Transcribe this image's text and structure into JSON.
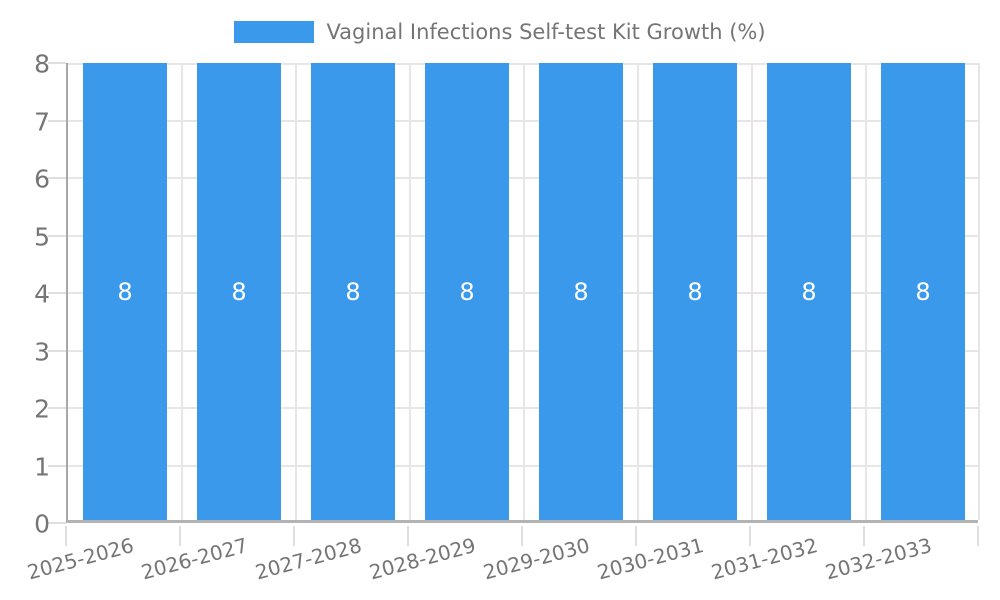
{
  "chart_data": {
    "type": "bar",
    "title": "Vaginal Infections Self-test Kit Growth (%)",
    "categories": [
      "2025-2026",
      "2026-2027",
      "2027-2028",
      "2028-2029",
      "2029-2030",
      "2030-2031",
      "2031-2032",
      "2032-2033"
    ],
    "series": [
      {
        "name": "Vaginal Infections Self-test Kit Growth (%)",
        "values": [
          8,
          8,
          8,
          8,
          8,
          8,
          8,
          8
        ]
      }
    ],
    "bar_value_labels": [
      "8",
      "8",
      "8",
      "8",
      "8",
      "8",
      "8",
      "8"
    ],
    "xlabel": "",
    "ylabel": "",
    "ylim": [
      0,
      8
    ],
    "y_ticks": [
      0,
      1,
      2,
      3,
      4,
      5,
      6,
      7,
      8
    ],
    "grid": true,
    "legend_position": "top-center",
    "colors": {
      "bar": "#3B99EC",
      "bar_label_text": "#FFFFFF",
      "axis_text": "#757575",
      "gridline": "#E6E6E6",
      "axis_line": "#ABABAB",
      "background": "#FFFFFF"
    }
  }
}
